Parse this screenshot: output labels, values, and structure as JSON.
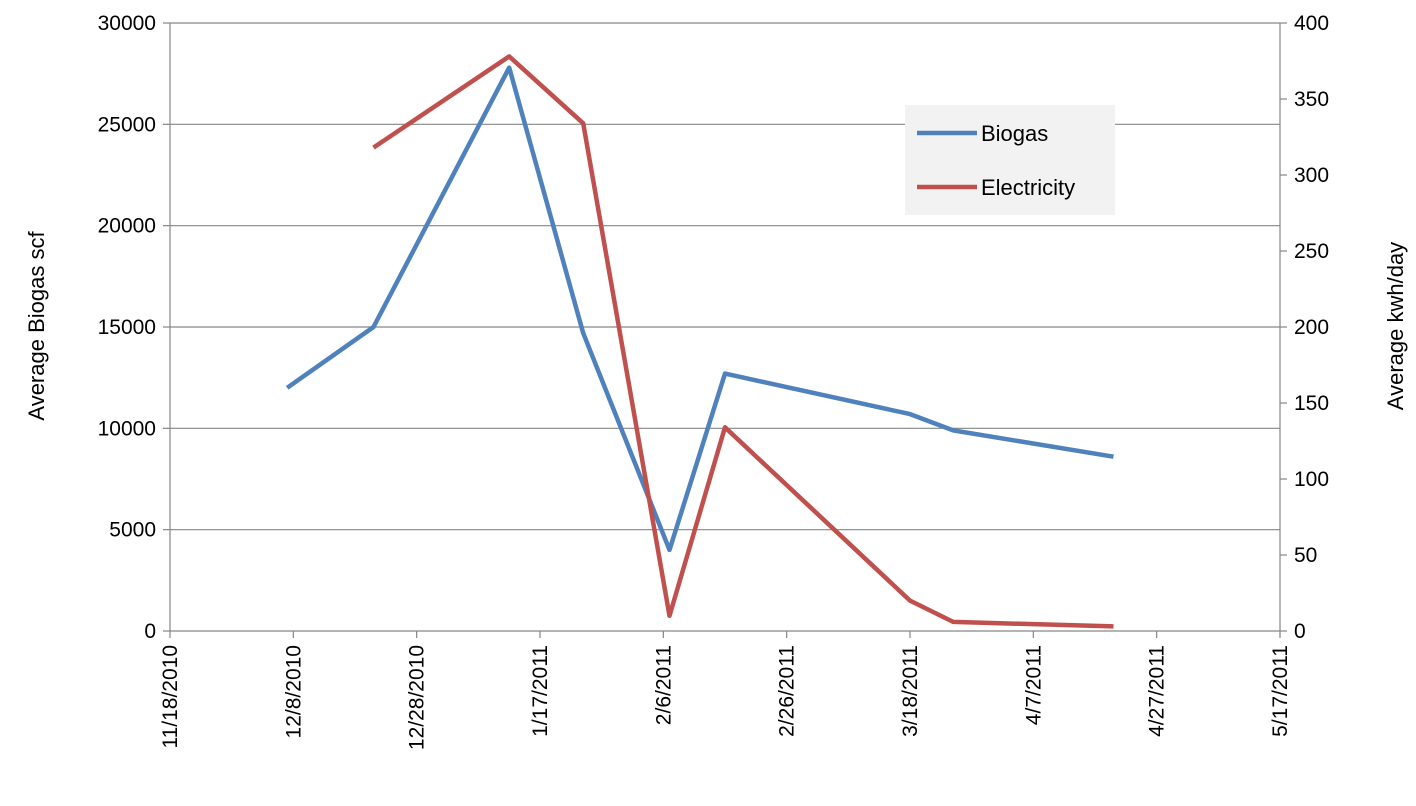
{
  "chart_data": {
    "type": "line",
    "title": "",
    "xlabel": "",
    "x_ticks": [
      "11/18/2010",
      "12/8/2010",
      "12/28/2010",
      "1/17/2011",
      "2/6/2011",
      "2/26/2011",
      "3/18/2011",
      "4/7/2011",
      "4/27/2011",
      "5/17/2011"
    ],
    "xlim": [
      "11/18/2010",
      "5/17/2011"
    ],
    "y_left": {
      "label": "Average Biogas scf",
      "range": [
        0,
        30000
      ],
      "ticks": [
        "0",
        "5000",
        "10000",
        "15000",
        "20000",
        "25000",
        "30000"
      ]
    },
    "y_right": {
      "label": "Average kwh/day",
      "range": [
        0,
        400
      ],
      "ticks": [
        "0",
        "50",
        "100",
        "150",
        "200",
        "250",
        "300",
        "350",
        "400"
      ]
    },
    "grid": true,
    "legend_position": "top-right",
    "series": [
      {
        "name": "Biogas",
        "axis": "left",
        "color": "#4F81BD",
        "points": [
          {
            "x": "12/7/2010",
            "y": 12000
          },
          {
            "x": "12/21/2010",
            "y": 15000
          },
          {
            "x": "1/12/2011",
            "y": 27800
          },
          {
            "x": "1/24/2011",
            "y": 14700
          },
          {
            "x": "2/7/2011",
            "y": 4000
          },
          {
            "x": "2/16/2011",
            "y": 12700
          },
          {
            "x": "3/18/2011",
            "y": 10700
          },
          {
            "x": "3/25/2011",
            "y": 9900
          },
          {
            "x": "4/20/2011",
            "y": 8600
          }
        ]
      },
      {
        "name": "Electricity",
        "axis": "right",
        "color": "#C0504D",
        "points": [
          {
            "x": "12/21/2010",
            "y": 318
          },
          {
            "x": "1/12/2011",
            "y": 378
          },
          {
            "x": "1/24/2011",
            "y": 334
          },
          {
            "x": "2/7/2011",
            "y": 10
          },
          {
            "x": "2/16/2011",
            "y": 134
          },
          {
            "x": "3/18/2011",
            "y": 20
          },
          {
            "x": "3/25/2011",
            "y": 6
          },
          {
            "x": "4/20/2011",
            "y": 3
          }
        ]
      }
    ]
  }
}
